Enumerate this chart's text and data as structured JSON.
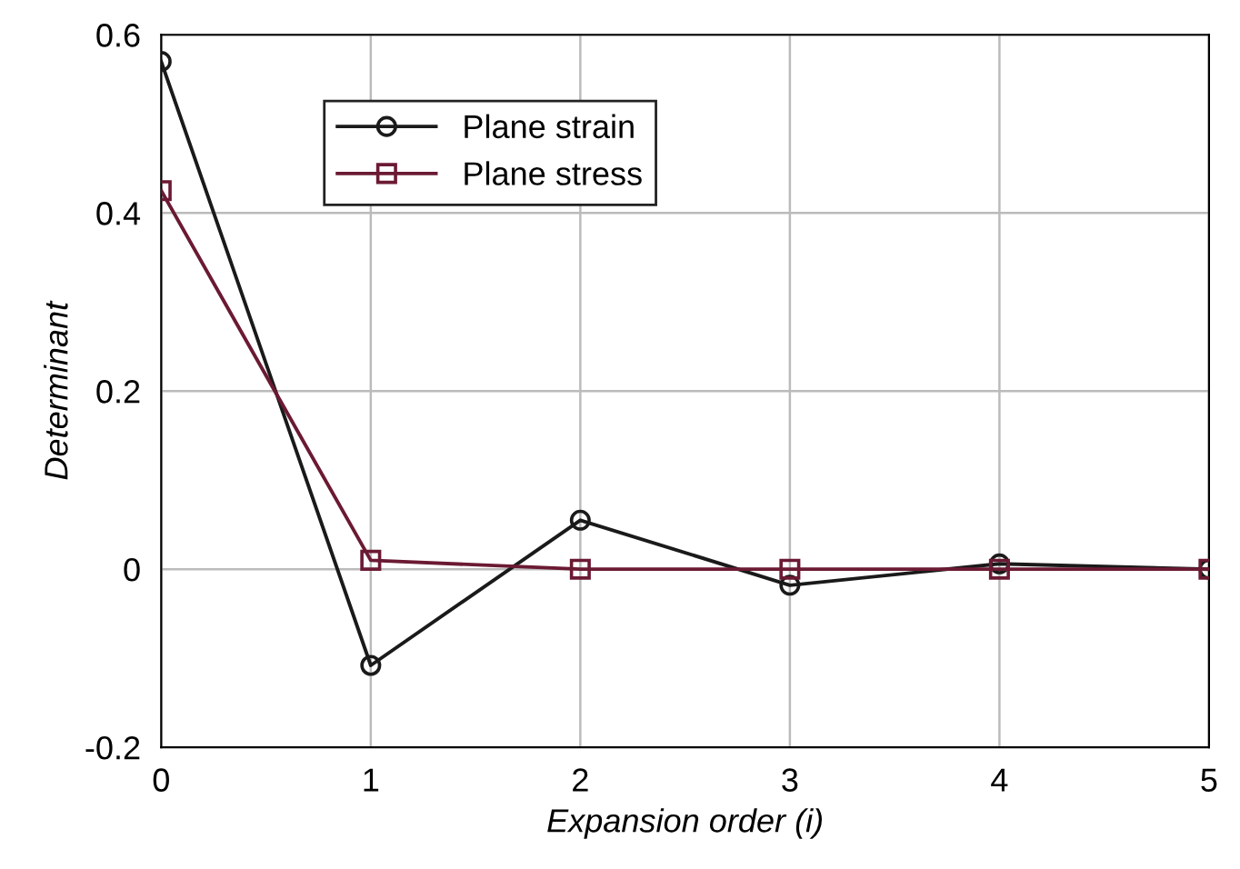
{
  "chart_data": {
    "type": "line",
    "xlabel": "Expansion order (i)",
    "ylabel": "Determinant",
    "x": [
      0,
      1,
      2,
      3,
      4,
      5
    ],
    "series": [
      {
        "name": "Plane strain",
        "color": "#1a1a1a",
        "marker": "circle",
        "values": [
          0.57,
          -0.108,
          0.055,
          -0.018,
          0.006,
          0.0
        ]
      },
      {
        "name": "Plane stress",
        "color": "#6b1a33",
        "marker": "square",
        "values": [
          0.425,
          0.01,
          0.0,
          0.0,
          0.0,
          0.0
        ]
      }
    ],
    "xlim": [
      0,
      5
    ],
    "xticks": [
      0,
      1,
      2,
      3,
      4,
      5
    ],
    "ylim": [
      -0.2,
      0.6
    ],
    "yticks": [
      {
        "value": -0.2,
        "label": "-0.2"
      },
      0,
      0.2,
      0.4,
      0.6
    ],
    "grid": true,
    "legend": "top left",
    "line_style": "solid"
  }
}
